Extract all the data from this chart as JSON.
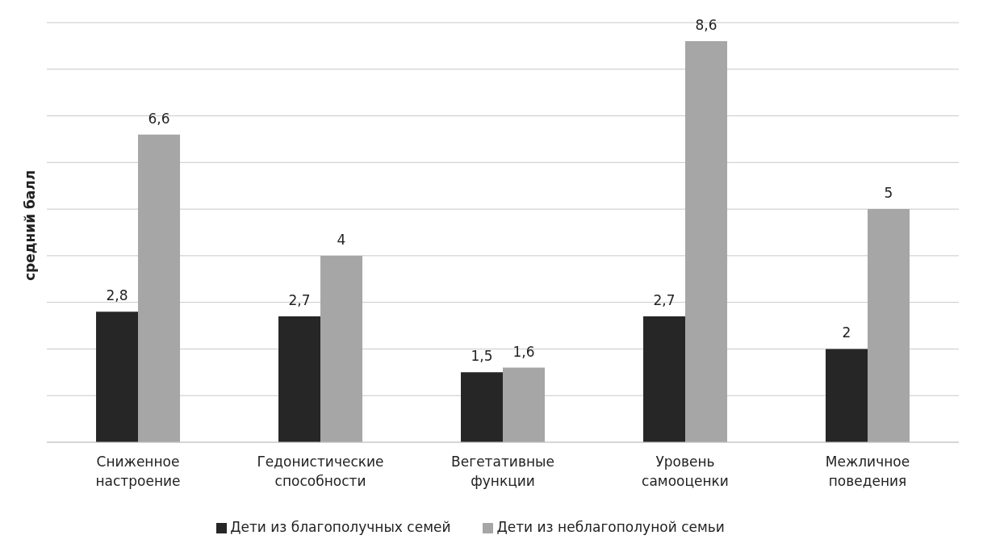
{
  "chart_data": {
    "type": "bar",
    "ylabel": "средний балл",
    "categories": [
      "Сниженное настроение",
      "Гедонистические способности",
      "Вегетативные функции",
      "Уровень самооценки",
      "Межличное поведения"
    ],
    "series": [
      {
        "name": "Дети из благополучных семей",
        "color": "#262626",
        "values": [
          2.8,
          2.7,
          1.5,
          2.7,
          2
        ],
        "value_labels": [
          "2,8",
          "2,7",
          "1,5",
          "2,7",
          "2"
        ]
      },
      {
        "name": "Дети из неблагополуной семьи",
        "color": "#a6a6a6",
        "values": [
          6.6,
          4,
          1.6,
          8.6,
          5
        ],
        "value_labels": [
          "6,6",
          "4",
          "1,6",
          "8,6",
          "5"
        ]
      }
    ],
    "ylim": [
      0,
      9
    ],
    "yticks": [
      {
        "value": 0,
        "label": null
      },
      {
        "value": 1,
        "label": null
      },
      {
        "value": 2,
        "label": null
      },
      {
        "value": 3,
        "label": null
      },
      {
        "value": 4,
        "label": null
      },
      {
        "value": 5,
        "label": null
      },
      {
        "value": 6,
        "label": null
      },
      {
        "value": 7,
        "label": null
      },
      {
        "value": 8,
        "label": null
      },
      {
        "value": 9,
        "label": null
      }
    ],
    "grid": "y",
    "legend": "bottom"
  }
}
